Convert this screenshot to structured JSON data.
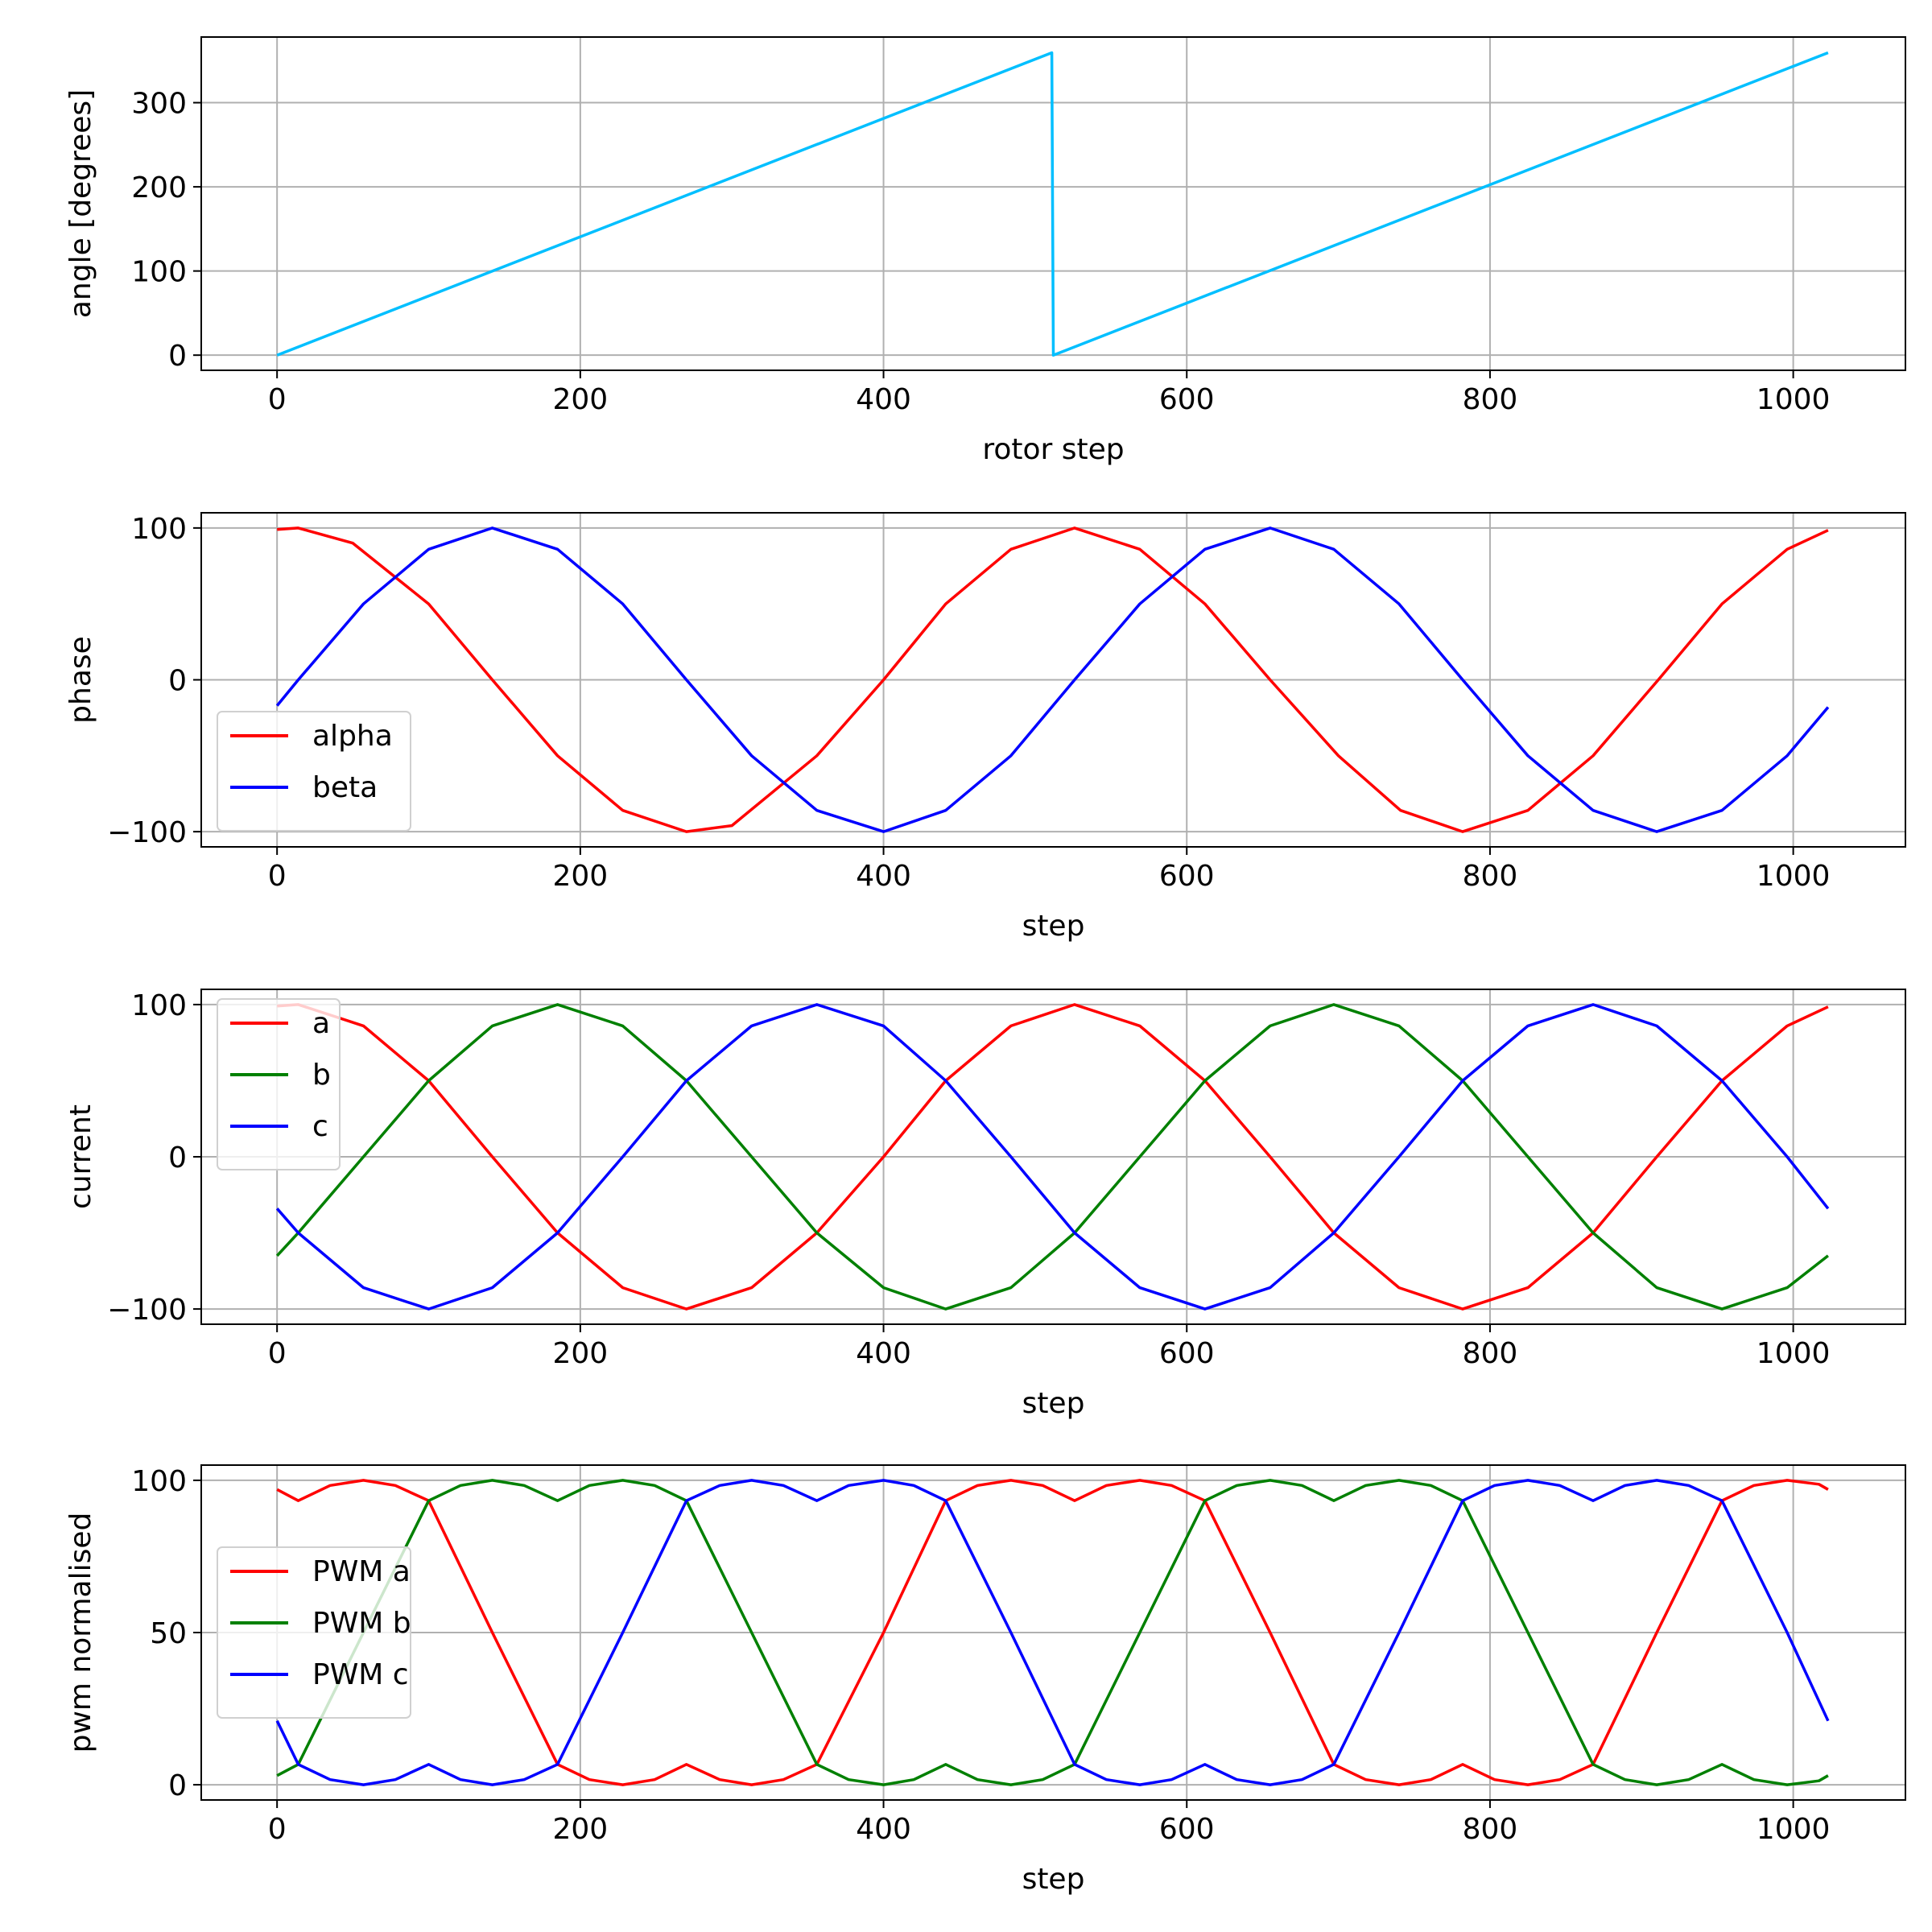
{
  "chart_data": [
    {
      "type": "line",
      "xlabel": "rotor step",
      "ylabel": "angle [degrees]",
      "xlim": [
        -50,
        1074
      ],
      "ylim": [
        -18,
        378
      ],
      "xticks": [
        0,
        200,
        400,
        600,
        800,
        1000
      ],
      "yticks": [
        0,
        100,
        200,
        300
      ],
      "grid": true,
      "legend": null,
      "series": [
        {
          "color": "#00bfff",
          "x": [
            0,
            511,
            512,
            1023
          ],
          "y": [
            0,
            359.3,
            0,
            359.3
          ]
        }
      ]
    },
    {
      "type": "line",
      "xlabel": "step",
      "ylabel": "phase",
      "xlim": [
        -50,
        1074
      ],
      "ylim": [
        -110,
        110
      ],
      "xticks": [
        0,
        200,
        400,
        600,
        800,
        1000
      ],
      "yticks": [
        -100,
        0,
        100
      ],
      "grid": true,
      "legend": "lower-left",
      "series": [
        {
          "name": "alpha",
          "color": "#ff0000",
          "x": [
            0,
            14,
            50,
            100,
            142,
            185,
            228,
            270,
            300,
            356,
            400,
            441,
            484,
            526,
            569,
            612,
            655,
            700,
            741,
            782,
            825,
            868,
            911,
            953,
            996,
            1023
          ],
          "y": [
            99,
            100,
            90,
            50,
            0,
            -50,
            -86,
            -100,
            -96,
            -50,
            0,
            50,
            86,
            100,
            86,
            50,
            0,
            -50,
            -86,
            -100,
            -86,
            -50,
            0,
            50,
            86,
            98.5
          ]
        },
        {
          "name": "beta",
          "color": "#0000ff",
          "x": [
            0,
            14,
            57,
            100,
            142,
            185,
            228,
            270,
            313,
            356,
            400,
            441,
            484,
            526,
            569,
            612,
            655,
            697,
            740,
            782,
            825,
            868,
            910,
            953,
            996,
            1023
          ],
          "y": [
            -17,
            0,
            50,
            86,
            100,
            86,
            50,
            0,
            -50,
            -86,
            -100,
            -86,
            -50,
            0,
            50,
            86,
            100,
            86,
            50,
            0,
            -50,
            -86,
            -100,
            -86,
            -50,
            -18
          ]
        }
      ]
    },
    {
      "type": "line",
      "xlabel": "step",
      "ylabel": "current",
      "xlim": [
        -50,
        1074
      ],
      "ylim": [
        -110,
        110
      ],
      "xticks": [
        0,
        200,
        400,
        600,
        800,
        1000
      ],
      "yticks": [
        -100,
        0,
        100
      ],
      "grid": true,
      "legend": "upper-left",
      "series": [
        {
          "name": "a",
          "color": "#ff0000",
          "x": [
            0,
            14,
            57,
            100,
            142,
            185,
            228,
            270,
            313,
            356,
            400,
            441,
            484,
            526,
            569,
            612,
            655,
            697,
            740,
            782,
            825,
            868,
            910,
            953,
            996,
            1023
          ],
          "y": [
            99,
            100,
            86,
            50,
            0,
            -50,
            -86,
            -100,
            -86,
            -50,
            0,
            50,
            86,
            100,
            86,
            50,
            0,
            -50,
            -86,
            -100,
            -86,
            -50,
            0,
            50,
            86,
            98.5
          ]
        },
        {
          "name": "b",
          "color": "#008000",
          "x": [
            0,
            14,
            57,
            100,
            142,
            185,
            228,
            270,
            313,
            356,
            400,
            441,
            484,
            526,
            569,
            612,
            655,
            697,
            740,
            782,
            825,
            868,
            910,
            953,
            996,
            1023
          ],
          "y": [
            -65,
            -50,
            0,
            50,
            86,
            100,
            86,
            50,
            0,
            -50,
            -86,
            -100,
            -86,
            -50,
            0,
            50,
            86,
            100,
            86,
            50,
            0,
            -50,
            -86,
            -100,
            -86,
            -65
          ]
        },
        {
          "name": "c",
          "color": "#0000ff",
          "x": [
            0,
            14,
            57,
            100,
            142,
            185,
            228,
            270,
            313,
            356,
            400,
            441,
            484,
            526,
            569,
            612,
            655,
            697,
            740,
            782,
            825,
            868,
            910,
            953,
            996,
            1023
          ],
          "y": [
            -34,
            -50,
            -86,
            -100,
            -86,
            -50,
            0,
            50,
            86,
            100,
            86,
            50,
            0,
            -50,
            -86,
            -100,
            -86,
            -50,
            0,
            50,
            86,
            100,
            86,
            50,
            0,
            -34
          ]
        }
      ]
    },
    {
      "type": "line",
      "xlabel": "step",
      "ylabel": "pwm normalised",
      "xlim": [
        -50,
        1074
      ],
      "ylim": [
        -5,
        105
      ],
      "xticks": [
        0,
        200,
        400,
        600,
        800,
        1000
      ],
      "yticks": [
        0,
        50,
        100
      ],
      "grid": true,
      "legend": "center-left",
      "series": [
        {
          "name": "PWM a",
          "color": "#ff0000",
          "x": [
            0,
            14,
            35,
            57,
            78,
            100,
            142,
            185,
            206,
            228,
            249,
            270,
            292,
            313,
            334,
            356,
            400,
            441,
            462,
            484,
            505,
            526,
            547,
            569,
            590,
            612,
            655,
            697,
            718,
            740,
            761,
            782,
            803,
            825,
            846,
            868,
            910,
            953,
            974,
            996,
            1017,
            1023
          ],
          "y": [
            97,
            93.3,
            98.3,
            100,
            98.3,
            93.3,
            50,
            6.7,
            1.7,
            0,
            1.7,
            6.7,
            1.7,
            0,
            1.7,
            6.7,
            50,
            93.3,
            98.3,
            100,
            98.3,
            93.3,
            98.3,
            100,
            98.3,
            93.3,
            50,
            6.7,
            1.7,
            0,
            1.7,
            6.7,
            1.7,
            0,
            1.7,
            6.7,
            50,
            93.3,
            98.3,
            100,
            98.7,
            97
          ]
        },
        {
          "name": "PWM b",
          "color": "#008000",
          "x": [
            0,
            14,
            57,
            100,
            121,
            142,
            163,
            185,
            206,
            228,
            249,
            270,
            313,
            356,
            377,
            400,
            420,
            441,
            462,
            484,
            505,
            526,
            569,
            612,
            633,
            655,
            676,
            697,
            718,
            740,
            761,
            782,
            825,
            868,
            889,
            910,
            931,
            953,
            974,
            996,
            1017,
            1023
          ],
          "y": [
            3,
            6.7,
            50,
            93.3,
            98.3,
            100,
            98.3,
            93.3,
            98.3,
            100,
            98.3,
            93.3,
            50,
            6.7,
            1.7,
            0,
            1.7,
            6.7,
            1.7,
            0,
            1.7,
            6.7,
            50,
            93.3,
            98.3,
            100,
            98.3,
            93.3,
            98.3,
            100,
            98.3,
            93.3,
            50,
            6.7,
            1.7,
            0,
            1.7,
            6.7,
            1.7,
            0,
            1.3,
            3
          ]
        },
        {
          "name": "PWM c",
          "color": "#0000ff",
          "x": [
            0,
            14,
            35,
            57,
            78,
            100,
            121,
            142,
            163,
            185,
            228,
            270,
            292,
            313,
            334,
            356,
            377,
            400,
            420,
            441,
            484,
            526,
            547,
            569,
            590,
            612,
            633,
            655,
            676,
            697,
            740,
            782,
            803,
            825,
            846,
            868,
            889,
            910,
            931,
            953,
            996,
            1023
          ],
          "y": [
            21,
            6.7,
            1.7,
            0,
            1.7,
            6.7,
            1.7,
            0,
            1.7,
            6.7,
            50,
            93.3,
            98.3,
            100,
            98.3,
            93.3,
            98.3,
            100,
            98.3,
            93.3,
            50,
            6.7,
            1.7,
            0,
            1.7,
            6.7,
            1.7,
            0,
            1.7,
            6.7,
            50,
            93.3,
            98.3,
            100,
            98.3,
            93.3,
            98.3,
            100,
            98.3,
            93.3,
            50,
            21
          ]
        }
      ]
    }
  ]
}
